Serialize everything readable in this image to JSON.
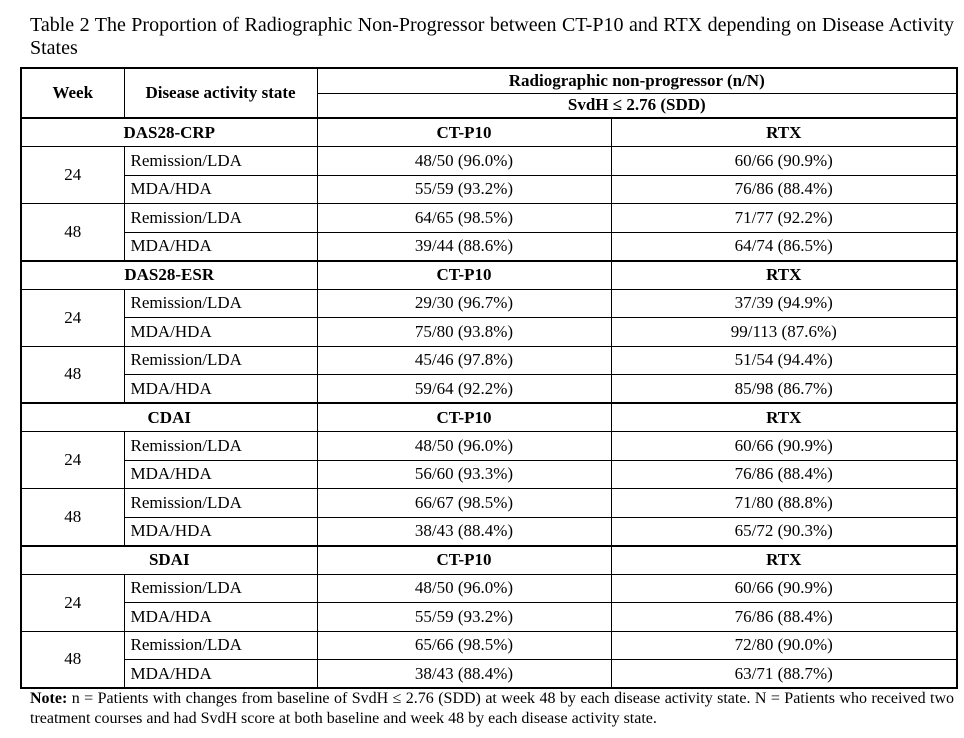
{
  "caption": "Table 2 The Proportion of Radiographic Non-Progressor between CT-P10 and RTX depending on Disease Activity States",
  "header": {
    "week": "Week",
    "state": "Disease activity state",
    "group": "Radiographic non-progressor (n/N)",
    "sub": "SvdH ≤ 2.76 (SDD)"
  },
  "sections": [
    {
      "index": "DAS28-CRP",
      "col1": "CT-P10",
      "col2": "RTX",
      "weeks": [
        {
          "week": "24",
          "rows": [
            [
              "Remission/LDA",
              "48/50 (96.0%)",
              "60/66 (90.9%)"
            ],
            [
              "MDA/HDA",
              "55/59 (93.2%)",
              "76/86 (88.4%)"
            ]
          ]
        },
        {
          "week": "48",
          "rows": [
            [
              "Remission/LDA",
              "64/65 (98.5%)",
              "71/77 (92.2%)"
            ],
            [
              "MDA/HDA",
              "39/44 (88.6%)",
              "64/74 (86.5%)"
            ]
          ]
        }
      ]
    },
    {
      "index": "DAS28-ESR",
      "col1": "CT-P10",
      "col2": "RTX",
      "weeks": [
        {
          "week": "24",
          "rows": [
            [
              "Remission/LDA",
              "29/30 (96.7%)",
              "37/39 (94.9%)"
            ],
            [
              "MDA/HDA",
              "75/80 (93.8%)",
              "99/113 (87.6%)"
            ]
          ]
        },
        {
          "week": "48",
          "rows": [
            [
              "Remission/LDA",
              "45/46 (97.8%)",
              "51/54 (94.4%)"
            ],
            [
              "MDA/HDA",
              "59/64 (92.2%)",
              "85/98 (86.7%)"
            ]
          ]
        }
      ]
    },
    {
      "index": "CDAI",
      "col1": "CT-P10",
      "col2": "RTX",
      "weeks": [
        {
          "week": "24",
          "rows": [
            [
              "Remission/LDA",
              "48/50 (96.0%)",
              "60/66 (90.9%)"
            ],
            [
              "MDA/HDA",
              "56/60 (93.3%)",
              "76/86 (88.4%)"
            ]
          ]
        },
        {
          "week": "48",
          "rows": [
            [
              "Remission/LDA",
              "66/67 (98.5%)",
              "71/80 (88.8%)"
            ],
            [
              "MDA/HDA",
              "38/43 (88.4%)",
              "65/72 (90.3%)"
            ]
          ]
        }
      ]
    },
    {
      "index": "SDAI",
      "col1": "CT-P10",
      "col2": "RTX",
      "weeks": [
        {
          "week": "24",
          "rows": [
            [
              "Remission/LDA",
              "48/50 (96.0%)",
              "60/66 (90.9%)"
            ],
            [
              "MDA/HDA",
              "55/59 (93.2%)",
              "76/86 (88.4%)"
            ]
          ]
        },
        {
          "week": "48",
          "rows": [
            [
              "Remission/LDA",
              "65/66 (98.5%)",
              "72/80 (90.0%)"
            ],
            [
              "MDA/HDA",
              "38/43 (88.4%)",
              "63/71 (88.7%)"
            ]
          ]
        }
      ]
    }
  ],
  "note": {
    "label": "Note:",
    "text": " n = Patients with changes from baseline of SvdH ≤ 2.76 (SDD) at week 48 by each disease activity state. N = Patients who received two treatment courses and had SvdH score at both baseline and week 48 by each disease activity state."
  }
}
